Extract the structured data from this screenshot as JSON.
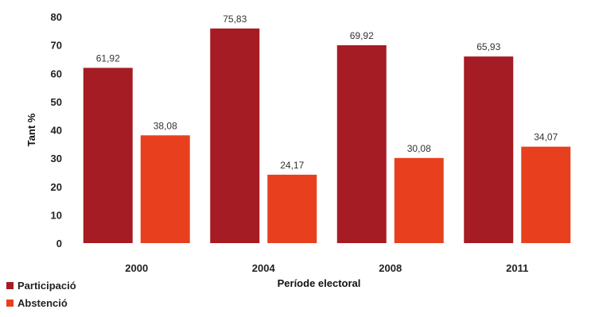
{
  "chart_data": {
    "type": "bar",
    "categories": [
      "2000",
      "2004",
      "2008",
      "2011"
    ],
    "series": [
      {
        "name": "Participació",
        "color": "#a51c24",
        "values": [
          61.92,
          75.83,
          69.92,
          65.93
        ],
        "labels": [
          "61,92",
          "75,83",
          "69,92",
          "65,93"
        ]
      },
      {
        "name": "Abstenció",
        "color": "#e8401f",
        "values": [
          38.08,
          24.17,
          30.08,
          34.07
        ],
        "labels": [
          "38,08",
          "24,17",
          "30,08",
          "34,07"
        ]
      }
    ],
    "xlabel": "Període electoral",
    "ylabel": "Tant %",
    "ylim": [
      0,
      80
    ],
    "yticks": [
      "0",
      "10",
      "20",
      "30",
      "40",
      "50",
      "60",
      "70",
      "80"
    ],
    "legend_position": "bottom-left",
    "grid": false
  }
}
